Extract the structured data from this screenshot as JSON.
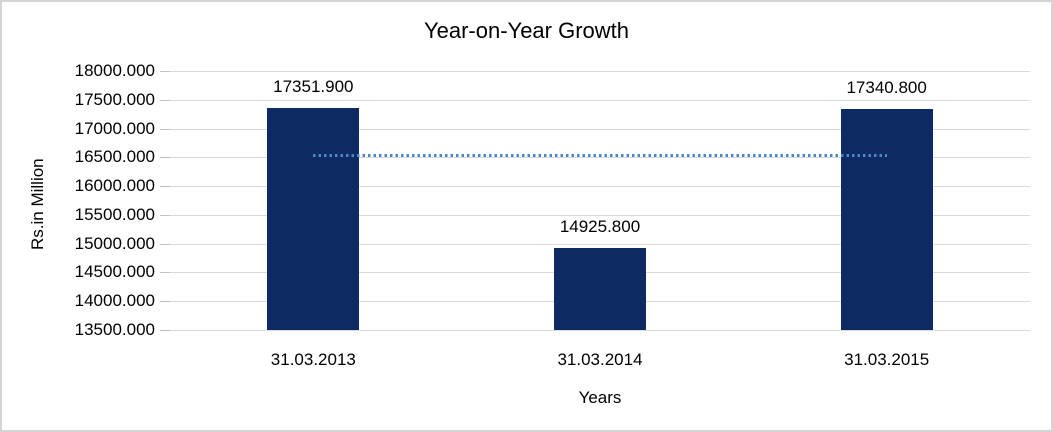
{
  "chart_data": {
    "type": "bar",
    "title": "Year-on-Year Growth",
    "xlabel": "Years",
    "ylabel": "Rs.in Million",
    "categories": [
      "31.03.2013",
      "31.03.2014",
      "31.03.2015"
    ],
    "values": [
      17351.9,
      14925.8,
      17340.8
    ],
    "data_labels": [
      "17351.900",
      "14925.800",
      "17340.800"
    ],
    "yticks": [
      "18000.000",
      "17500.000",
      "17000.000",
      "16500.000",
      "16000.000",
      "15500.000",
      "15000.000",
      "14500.000",
      "14000.000",
      "13500.000"
    ],
    "ylim": [
      13500,
      18000
    ],
    "ytick_step": 500,
    "grid": true,
    "legend": "none",
    "trendline": {
      "type": "linear",
      "style": "dotted",
      "value": 16539.5,
      "span": "center of first bar to center of last bar"
    },
    "colors": {
      "bar": "#0D2A63",
      "trendline": "#4A86C8",
      "gridline": "#D9D9D9",
      "text": "#000000",
      "border": "#D4D4D4"
    }
  }
}
